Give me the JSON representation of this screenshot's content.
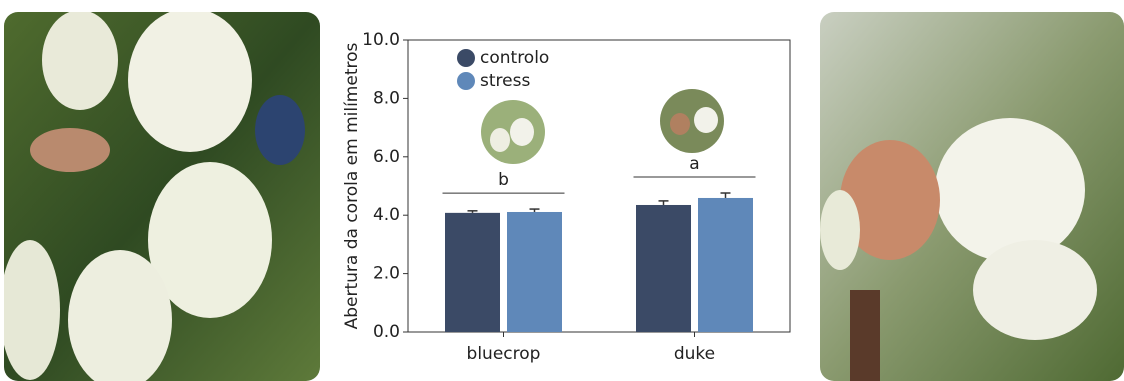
{
  "chart_data": {
    "type": "bar",
    "ylabel": "Abertura da corola em milímetros",
    "categories": [
      "bluecrop",
      "duke"
    ],
    "series": [
      {
        "name": "controlo",
        "color": "#3b4a66",
        "values": [
          4.08,
          4.35
        ],
        "errors": [
          0.07,
          0.14
        ]
      },
      {
        "name": "stress",
        "color": "#5f88b9",
        "values": [
          4.11,
          4.59
        ],
        "errors": [
          0.1,
          0.17
        ]
      }
    ],
    "significance_letters": [
      "b",
      "a"
    ],
    "ylim": [
      0,
      10
    ],
    "yticks": [
      {
        "value": 0,
        "label": "0.0"
      },
      {
        "value": 2,
        "label": "2.0"
      },
      {
        "value": 4,
        "label": "4.0"
      },
      {
        "value": 6,
        "label": "6.0"
      },
      {
        "value": 8,
        "label": "8.0"
      },
      {
        "value": 10,
        "label": "10.0"
      }
    ],
    "legend": "upper left"
  }
}
